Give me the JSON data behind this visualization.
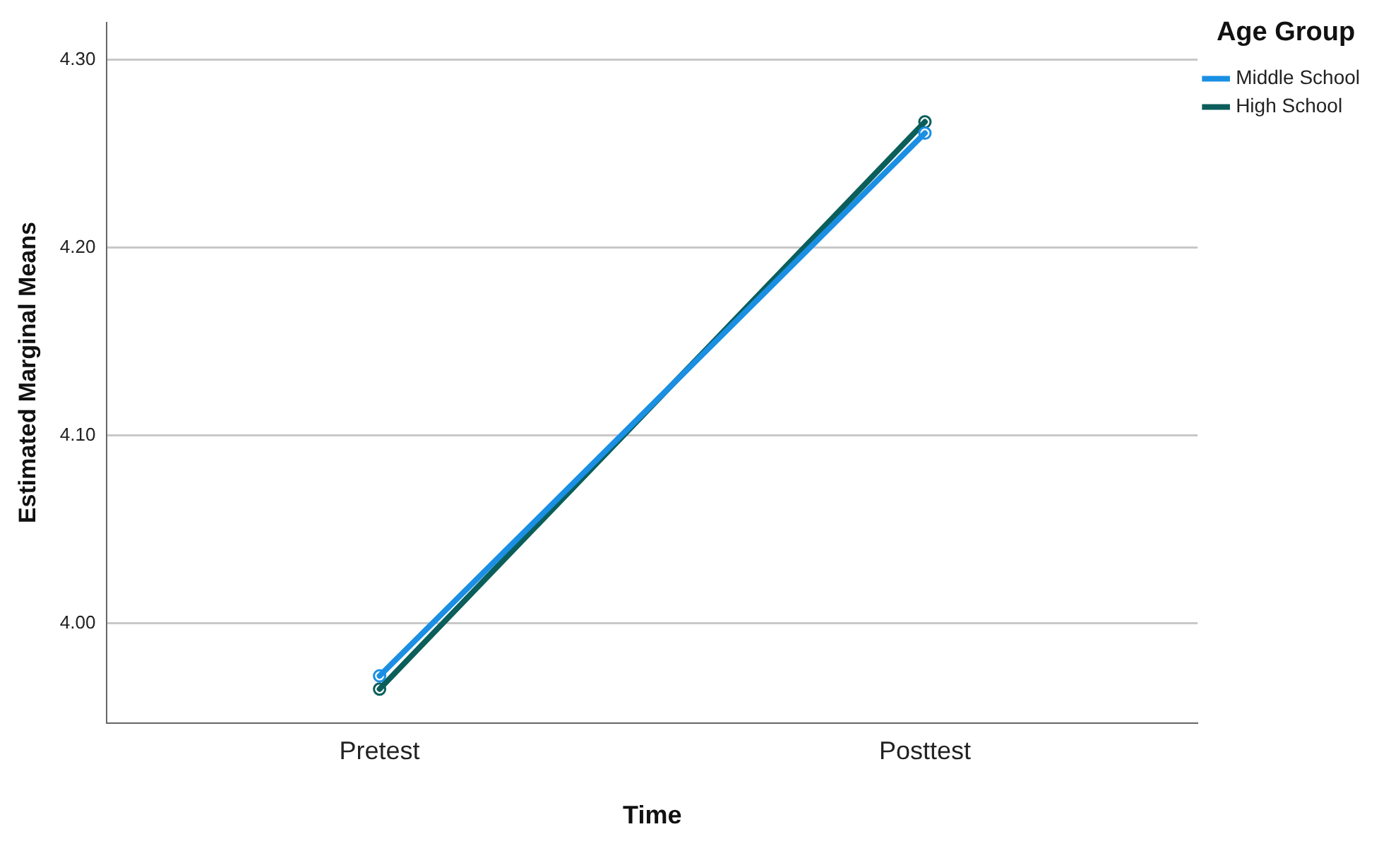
{
  "chart_data": {
    "type": "line",
    "xlabel": "Time",
    "ylabel": "Estimated Marginal Means",
    "legend_title": "Age Group",
    "categories": [
      "Pretest",
      "Posttest"
    ],
    "series": [
      {
        "name": "Middle School",
        "color": "#1a8fe3",
        "values": [
          3.972,
          4.261
        ]
      },
      {
        "name": "High School",
        "color": "#0b5e5a",
        "values": [
          3.965,
          4.267
        ]
      }
    ],
    "ylim": [
      3.947,
      4.32
    ],
    "yticks": [
      {
        "value": 4.0,
        "label": "4.00"
      },
      {
        "value": 4.1,
        "label": "4.10"
      },
      {
        "value": 4.2,
        "label": "4.20"
      },
      {
        "value": 4.3,
        "label": "4.30"
      }
    ],
    "grid": "y",
    "legend": "top right",
    "marker": "circle",
    "line_style": "solid"
  }
}
